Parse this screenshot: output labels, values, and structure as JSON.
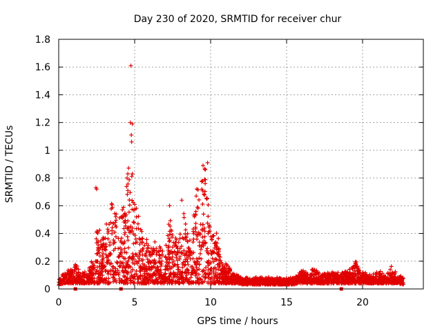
{
  "chart_data": {
    "type": "scatter",
    "title": "Day 230 of 2020, SRMTID for receiver chur",
    "xlabel": "GPS time / hours",
    "ylabel": "SRMTID / TECUs",
    "xlim": [
      0,
      24
    ],
    "ylim": [
      0,
      1.8
    ],
    "x_ticks": [
      0,
      5,
      10,
      15,
      20
    ],
    "x_tick_labels": [
      "0",
      "5",
      "10",
      "15",
      "20"
    ],
    "y_ticks": [
      0,
      0.2,
      0.4,
      0.6,
      0.8,
      1.0,
      1.2,
      1.4,
      1.6,
      1.8
    ],
    "y_tick_labels": [
      "0",
      "0.2",
      "0.4",
      "0.6",
      "0.8",
      "1",
      "1.2",
      "1.4",
      "1.6",
      "1.8"
    ],
    "grid": true,
    "marker": "plus",
    "color": "#e00000",
    "envelope": {
      "description": "typical upper bound of SRMTID vs time (hours, TECU)",
      "points": [
        [
          0,
          0.06
        ],
        [
          0.3,
          0.1
        ],
        [
          0.8,
          0.14
        ],
        [
          1.0,
          0.2
        ],
        [
          1.5,
          0.12
        ],
        [
          2.0,
          0.14
        ],
        [
          2.4,
          0.25
        ],
        [
          2.5,
          0.55
        ],
        [
          2.8,
          0.3
        ],
        [
          3.2,
          0.5
        ],
        [
          3.5,
          0.6
        ],
        [
          4.0,
          0.5
        ],
        [
          4.3,
          0.7
        ],
        [
          4.6,
          0.8
        ],
        [
          4.8,
          0.75
        ],
        [
          5.0,
          0.6
        ],
        [
          5.3,
          0.5
        ],
        [
          5.6,
          0.35
        ],
        [
          6.0,
          0.3
        ],
        [
          6.5,
          0.35
        ],
        [
          7.0,
          0.25
        ],
        [
          7.3,
          0.5
        ],
        [
          7.8,
          0.3
        ],
        [
          8.2,
          0.6
        ],
        [
          8.6,
          0.3
        ],
        [
          9.0,
          0.6
        ],
        [
          9.4,
          0.85
        ],
        [
          9.7,
          0.9
        ],
        [
          10.0,
          0.35
        ],
        [
          10.4,
          0.45
        ],
        [
          10.7,
          0.2
        ],
        [
          11.0,
          0.18
        ],
        [
          11.5,
          0.12
        ],
        [
          12.0,
          0.08
        ],
        [
          14.0,
          0.08
        ],
        [
          15.5,
          0.08
        ],
        [
          16.1,
          0.14
        ],
        [
          16.5,
          0.1
        ],
        [
          16.8,
          0.16
        ],
        [
          17.2,
          0.1
        ],
        [
          18.0,
          0.12
        ],
        [
          19.0,
          0.12
        ],
        [
          19.5,
          0.22
        ],
        [
          19.8,
          0.12
        ],
        [
          20.5,
          0.1
        ],
        [
          21.0,
          0.13
        ],
        [
          21.5,
          0.1
        ],
        [
          21.9,
          0.16
        ],
        [
          22.3,
          0.1
        ],
        [
          22.7,
          0.08
        ]
      ]
    },
    "outliers": [
      [
        4.75,
        1.61
      ],
      [
        4.72,
        1.2
      ],
      [
        4.85,
        1.19
      ],
      [
        4.78,
        1.11
      ],
      [
        4.8,
        1.06
      ],
      [
        4.55,
        0.83
      ],
      [
        4.85,
        0.83
      ],
      [
        4.5,
        0.8
      ],
      [
        9.8,
        0.91
      ],
      [
        9.5,
        0.89
      ],
      [
        9.65,
        0.86
      ],
      [
        2.45,
        0.73
      ],
      [
        2.5,
        0.72
      ],
      [
        7.3,
        0.6
      ],
      [
        8.1,
        0.64
      ]
    ],
    "baseline_markers": [
      1.1,
      4.1,
      18.6
    ],
    "x_range_data": [
      0,
      22.7
    ],
    "n_points_approx": 3000
  }
}
